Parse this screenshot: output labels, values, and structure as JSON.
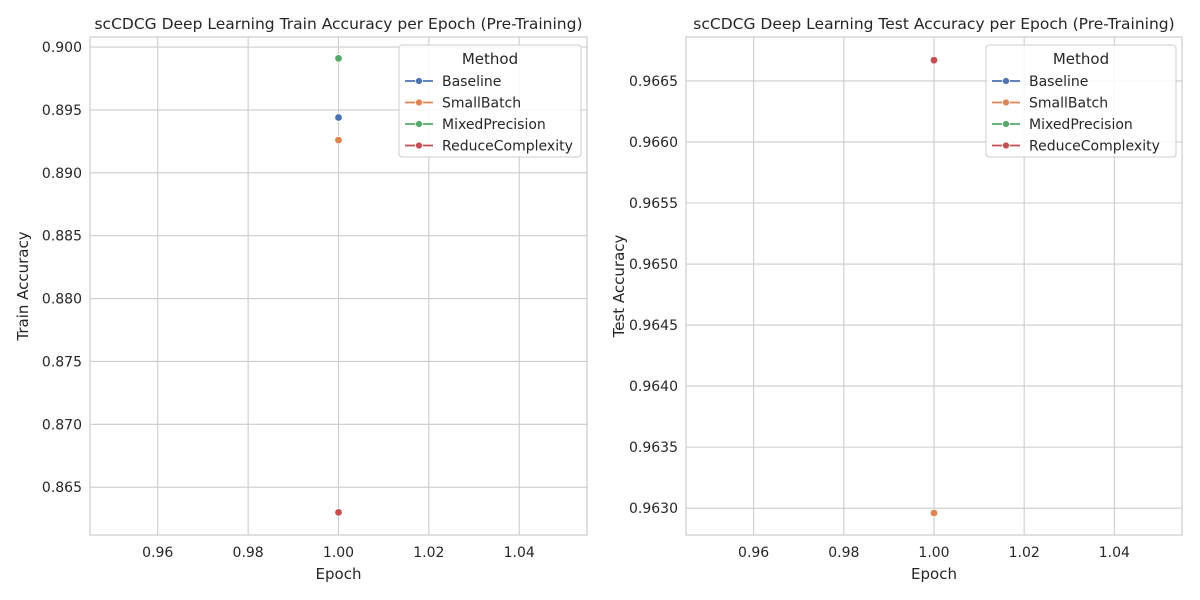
{
  "chart_data": [
    {
      "type": "scatter",
      "title": "scCDCG Deep Learning Train Accuracy per Epoch (Pre-Training)",
      "xlabel": "Epoch",
      "ylabel": "Train Accuracy",
      "xlim": [
        0.945,
        1.055
      ],
      "ylim": [
        0.8612,
        0.9008
      ],
      "xticks": [
        0.96,
        0.98,
        1.0,
        1.02,
        1.04
      ],
      "xtick_labels": [
        "0.96",
        "0.98",
        "1.00",
        "1.02",
        "1.04"
      ],
      "yticks": [
        0.865,
        0.87,
        0.875,
        0.88,
        0.885,
        0.89,
        0.895,
        0.9
      ],
      "ytick_labels": [
        "0.865",
        "0.870",
        "0.875",
        "0.880",
        "0.885",
        "0.890",
        "0.895",
        "0.900"
      ],
      "grid": true,
      "legend": {
        "title": "Method",
        "position": "top-right"
      },
      "series": [
        {
          "name": "Baseline",
          "color": "#4c72b0",
          "x": [
            1.0
          ],
          "y": [
            0.8944
          ]
        },
        {
          "name": "SmallBatch",
          "color": "#dd8452",
          "x": [
            1.0
          ],
          "y": [
            0.8926
          ]
        },
        {
          "name": "MixedPrecision",
          "color": "#55a868",
          "x": [
            1.0
          ],
          "y": [
            0.8991
          ]
        },
        {
          "name": "ReduceComplexity",
          "color": "#c44e52",
          "x": [
            1.0
          ],
          "y": [
            0.863
          ]
        }
      ]
    },
    {
      "type": "scatter",
      "title": "scCDCG Deep Learning Test Accuracy per Epoch (Pre-Training)",
      "xlabel": "Epoch",
      "ylabel": "Test Accuracy",
      "xlim": [
        0.945,
        1.055
      ],
      "ylim": [
        0.96278,
        0.96686
      ],
      "xticks": [
        0.96,
        0.98,
        1.0,
        1.02,
        1.04
      ],
      "xtick_labels": [
        "0.96",
        "0.98",
        "1.00",
        "1.02",
        "1.04"
      ],
      "yticks": [
        0.963,
        0.9635,
        0.964,
        0.9645,
        0.965,
        0.9655,
        0.966,
        0.9665
      ],
      "ytick_labels": [
        "0.9630",
        "0.9635",
        "0.9640",
        "0.9645",
        "0.9650",
        "0.9655",
        "0.9660",
        "0.9665"
      ],
      "grid": true,
      "legend": {
        "title": "Method",
        "position": "top-right"
      },
      "series": [
        {
          "name": "Baseline",
          "color": "#4c72b0",
          "x": [
            1.0
          ],
          "y": [
            0.96296
          ]
        },
        {
          "name": "SmallBatch",
          "color": "#dd8452",
          "x": [
            1.0
          ],
          "y": [
            0.96296
          ]
        },
        {
          "name": "MixedPrecision",
          "color": "#55a868",
          "x": [
            1.0
          ],
          "y": [
            0.96667
          ]
        },
        {
          "name": "ReduceComplexity",
          "color": "#c44e52",
          "x": [
            1.0
          ],
          "y": [
            0.96667
          ]
        }
      ]
    }
  ]
}
